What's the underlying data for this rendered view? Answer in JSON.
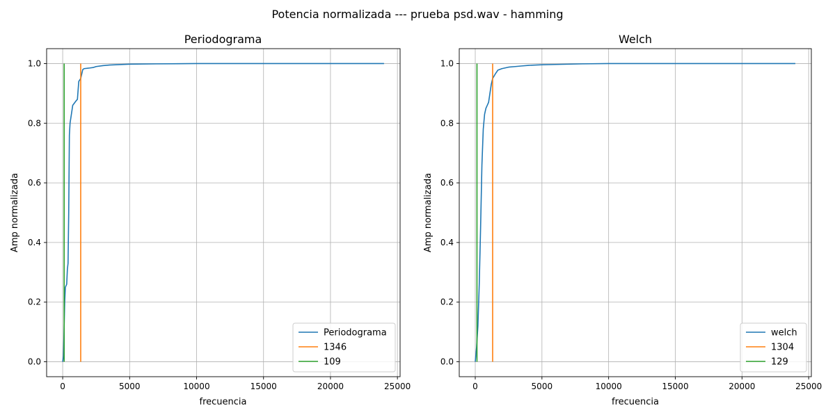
{
  "figure_title": "Potencia normalizada --- prueba psd.wav - hamming",
  "colors": {
    "series1": "#1f77b4",
    "series2": "#ff7f0e",
    "series3": "#2ca02c",
    "grid": "#b0b0b0"
  },
  "chart_data": [
    {
      "type": "line",
      "title": "Periodograma",
      "xlabel": "frecuencia",
      "ylabel": "Amp normalizada",
      "xlim": [
        -1200,
        25200
      ],
      "ylim": [
        -0.05,
        1.05
      ],
      "xticks": [
        0,
        5000,
        10000,
        15000,
        20000,
        25000
      ],
      "yticks": [
        0.0,
        0.2,
        0.4,
        0.6,
        0.8,
        1.0
      ],
      "xtick_labels": [
        "0",
        "5000",
        "10000",
        "15000",
        "20000",
        "25000"
      ],
      "ytick_labels": [
        "0.0",
        "0.2",
        "0.4",
        "0.6",
        "0.8",
        "1.0"
      ],
      "grid": true,
      "legend_position": "lower-right",
      "series": [
        {
          "name": "Periodograma",
          "x": [
            0,
            60,
            100,
            150,
            200,
            300,
            350,
            400,
            450,
            500,
            550,
            650,
            750,
            1000,
            1100,
            1200,
            1346,
            1500,
            1600,
            2000,
            2300,
            2500,
            3000,
            3500,
            5000,
            7000,
            10000,
            15000,
            20000,
            24000
          ],
          "y": [
            0.0,
            0.02,
            0.1,
            0.2,
            0.25,
            0.26,
            0.31,
            0.33,
            0.5,
            0.76,
            0.8,
            0.83,
            0.86,
            0.875,
            0.88,
            0.94,
            0.95,
            0.98,
            0.983,
            0.985,
            0.987,
            0.99,
            0.993,
            0.995,
            0.998,
            0.999,
            1.0,
            1.0,
            1.0,
            1.0
          ]
        },
        {
          "name": "1346",
          "x": [
            1346,
            1346
          ],
          "y": [
            0.0,
            1.0
          ]
        },
        {
          "name": "109",
          "x": [
            109,
            109
          ],
          "y": [
            0.0,
            1.0
          ]
        }
      ],
      "legend": [
        "Periodograma",
        "1346",
        "109"
      ]
    },
    {
      "type": "line",
      "title": "Welch",
      "xlabel": "frecuencia",
      "ylabel": "Amp normalizada",
      "xlim": [
        -1200,
        25200
      ],
      "ylim": [
        -0.05,
        1.05
      ],
      "xticks": [
        0,
        5000,
        10000,
        15000,
        20000,
        25000
      ],
      "yticks": [
        0.0,
        0.2,
        0.4,
        0.6,
        0.8,
        1.0
      ],
      "xtick_labels": [
        "0",
        "5000",
        "10000",
        "15000",
        "20000",
        "25000"
      ],
      "ytick_labels": [
        "0.0",
        "0.2",
        "0.4",
        "0.6",
        "0.8",
        "1.0"
      ],
      "grid": true,
      "legend_position": "lower-right",
      "series": [
        {
          "name": "welch",
          "x": [
            0,
            100,
            200,
            300,
            400,
            500,
            600,
            700,
            800,
            900,
            1000,
            1100,
            1200,
            1304,
            1500,
            1700,
            2000,
            2500,
            3000,
            3500,
            4000,
            5000,
            6000,
            8000,
            10000,
            15000,
            20000,
            24000
          ],
          "y": [
            0.0,
            0.05,
            0.12,
            0.26,
            0.45,
            0.66,
            0.78,
            0.83,
            0.85,
            0.86,
            0.87,
            0.9,
            0.93,
            0.95,
            0.965,
            0.978,
            0.983,
            0.988,
            0.99,
            0.992,
            0.994,
            0.996,
            0.997,
            0.999,
            1.0,
            1.0,
            1.0,
            1.0
          ]
        },
        {
          "name": "1304",
          "x": [
            1304,
            1304
          ],
          "y": [
            0.0,
            1.0
          ]
        },
        {
          "name": "129",
          "x": [
            129,
            129
          ],
          "y": [
            0.0,
            1.0
          ]
        }
      ],
      "legend": [
        "welch",
        "1304",
        "129"
      ]
    }
  ]
}
